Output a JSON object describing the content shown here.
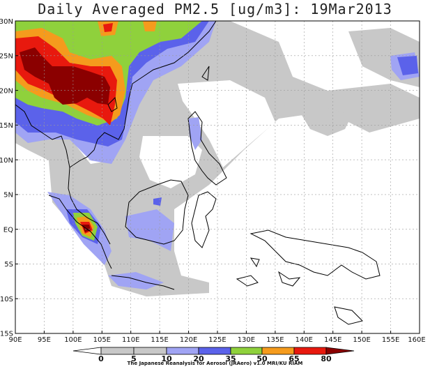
{
  "title": "Daily Averaged PM2.5 [ug/m3]: 19Mar2013",
  "credit": "The Japanese Reanalysis for Aerosol (JRAero) v1.0 MRI/KU RIAM",
  "lat_labels": [
    "30N",
    "25N",
    "20N",
    "15N",
    "10N",
    "5N",
    "EQ",
    "5S",
    "10S",
    "15S"
  ],
  "lon_labels": [
    "90E",
    "95E",
    "100E",
    "105E",
    "110E",
    "115E",
    "120E",
    "125E",
    "130E",
    "135E",
    "140E",
    "145E",
    "150E",
    "155E",
    "160E"
  ],
  "colorbar": {
    "levels": [
      "0",
      "5",
      "10",
      "20",
      "35",
      "50",
      "65",
      "80"
    ],
    "colors": [
      "#ffffff",
      "#c8c8c8",
      "#a0a4f4",
      "#5b62ea",
      "#8fd13c",
      "#f59b1d",
      "#e8190e",
      "#8b0000"
    ]
  }
}
